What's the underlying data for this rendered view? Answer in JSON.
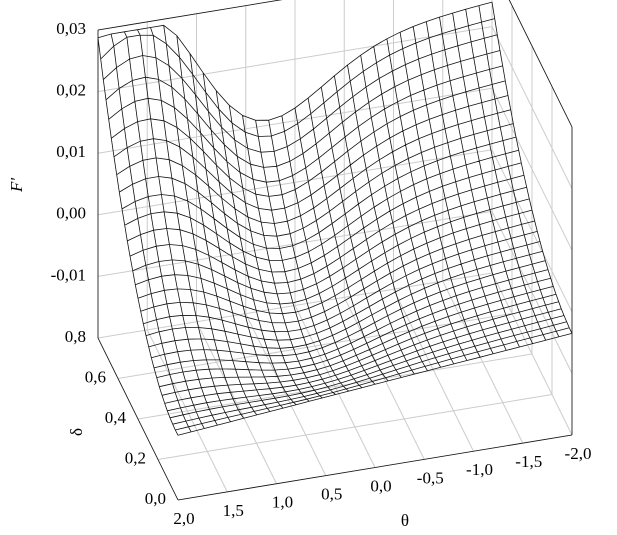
{
  "chart_data": {
    "type": "surface",
    "z_label": "F'",
    "x_label": "θ",
    "y_label": "δ",
    "zlim": [
      -0.02,
      0.03
    ],
    "zticks": [
      {
        "value": -0.01,
        "label": "-0,01"
      },
      {
        "value": 0,
        "label": "0,00"
      },
      {
        "value": 0.01,
        "label": "0,01"
      },
      {
        "value": 0.02,
        "label": "0,02"
      },
      {
        "value": 0.03,
        "label": "0,03"
      }
    ],
    "xlim": [
      2,
      -2
    ],
    "xticks": [
      {
        "value": 2,
        "label": "2,0"
      },
      {
        "value": 1.5,
        "label": "1,5"
      },
      {
        "value": 1,
        "label": "1,0"
      },
      {
        "value": 0.5,
        "label": "0,5"
      },
      {
        "value": 0,
        "label": "0,0"
      },
      {
        "value": -0.5,
        "label": "-0,5"
      },
      {
        "value": -1,
        "label": "-1,0"
      },
      {
        "value": -1.5,
        "label": "-1,5"
      },
      {
        "value": -2,
        "label": "-2,0"
      }
    ],
    "ylim": [
      0,
      0.8
    ],
    "yticks": [
      {
        "value": 0,
        "label": "0,0"
      },
      {
        "value": 0.2,
        "label": "0,2"
      },
      {
        "value": 0.4,
        "label": "0,4"
      },
      {
        "value": 0.6,
        "label": "0,6"
      },
      {
        "value": 0.8,
        "label": "0,8"
      }
    ]
  }
}
